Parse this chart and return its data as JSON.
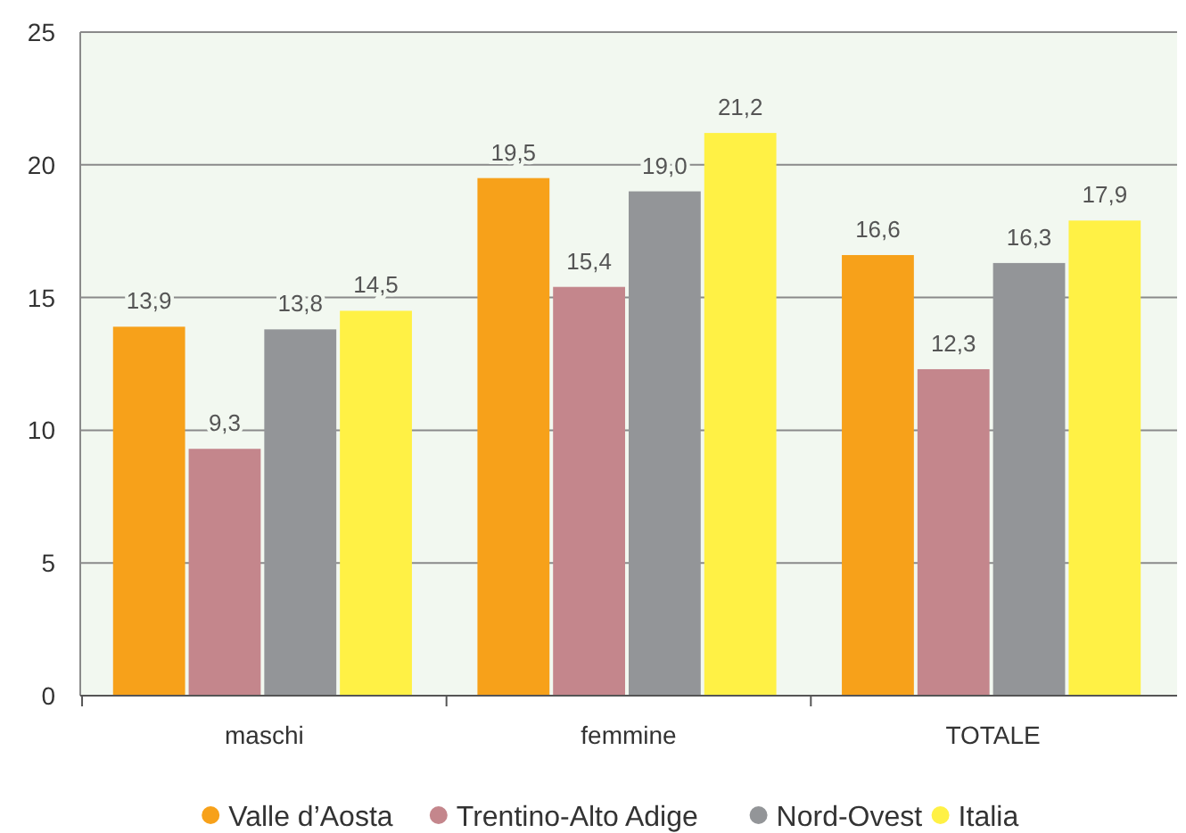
{
  "chart_data": {
    "type": "bar",
    "categories": [
      "maschi",
      "femmine",
      "TOTALE"
    ],
    "series": [
      {
        "name": "Valle d’Aosta",
        "color": "#f7a11a",
        "values": [
          13.9,
          19.5,
          16.6
        ],
        "value_labels": [
          "13,9",
          "19,5",
          "16,6"
        ]
      },
      {
        "name": "Trentino-Alto Adige",
        "color": "#c4868c",
        "values": [
          9.3,
          15.4,
          12.3
        ],
        "value_labels": [
          "9,3",
          "15,4",
          "12,3"
        ]
      },
      {
        "name": "Nord-Ovest",
        "color": "#939598",
        "values": [
          13.8,
          19.0,
          16.3
        ],
        "value_labels": [
          "13,8",
          "19,0",
          "16,3"
        ]
      },
      {
        "name": "Italia",
        "color": "#fff145",
        "values": [
          14.5,
          21.2,
          17.9
        ],
        "value_labels": [
          "14,5",
          "21,2",
          "17,9"
        ]
      }
    ],
    "ylim": [
      0,
      25
    ],
    "yticks": [
      0,
      5,
      10,
      15,
      20,
      25
    ],
    "grid": "y",
    "legend": "bottom"
  }
}
